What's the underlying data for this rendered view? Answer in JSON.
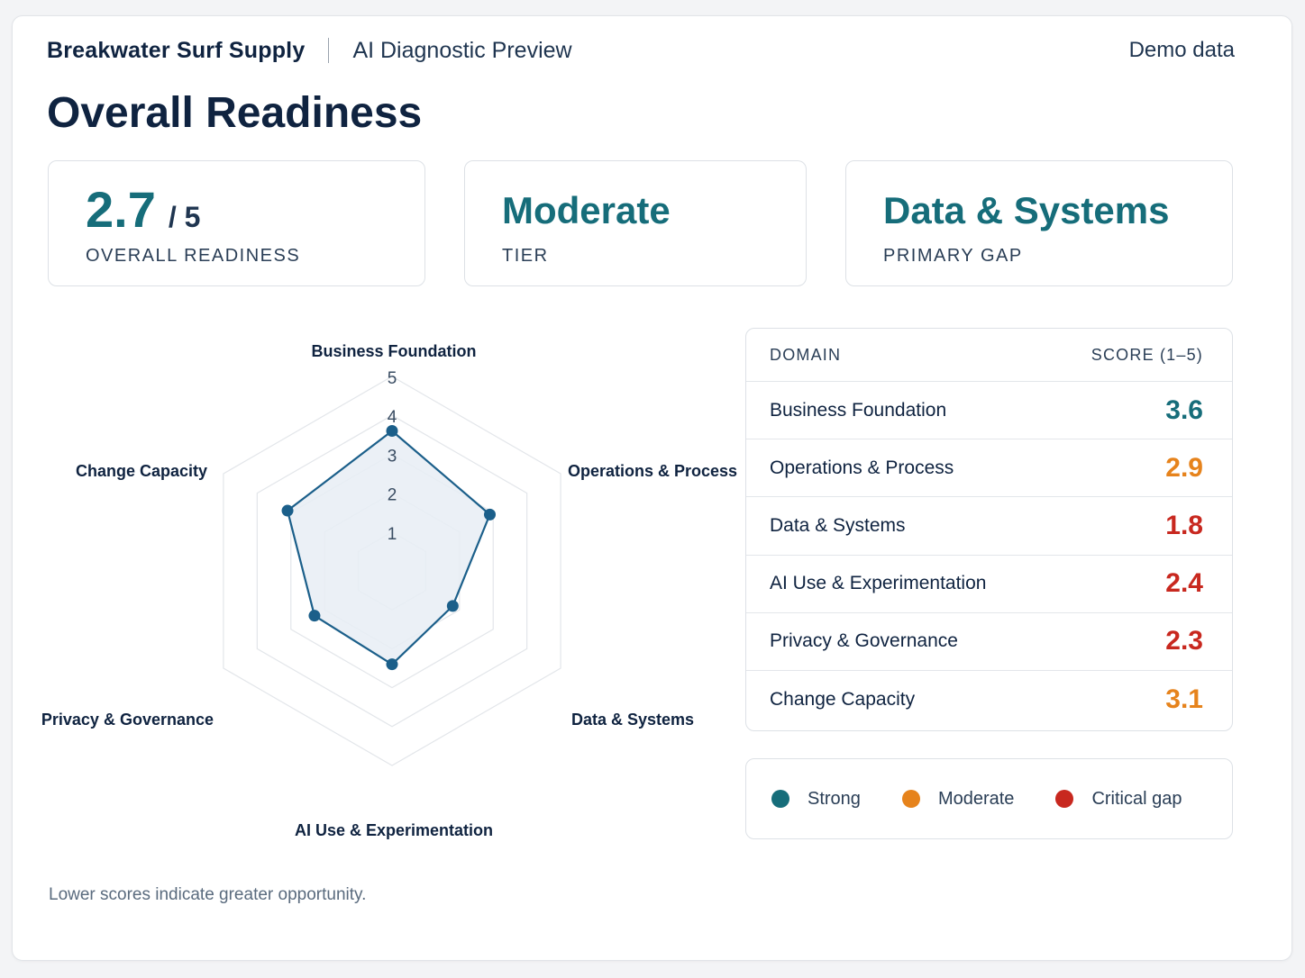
{
  "header": {
    "brand": "Breakwater Surf Supply",
    "subtitle": "AI Diagnostic Preview",
    "tag": "Demo data"
  },
  "page_title": "Overall Readiness",
  "kpis": {
    "readiness": {
      "value": "2.7",
      "denominator": "/ 5",
      "label": "OVERALL READINESS"
    },
    "tier": {
      "value": "Moderate",
      "label": "TIER"
    },
    "gap": {
      "value": "Data & Systems",
      "label": "PRIMARY GAP"
    }
  },
  "chart_data": {
    "type": "radar",
    "axes": [
      "Business Foundation",
      "Operations & Process",
      "Data & Systems",
      "AI Use & Experimentation",
      "Privacy & Governance",
      "Change Capacity"
    ],
    "values": [
      3.6,
      2.9,
      1.8,
      2.4,
      2.3,
      3.1
    ],
    "range": [
      0,
      5
    ],
    "rings": [
      1,
      2,
      3,
      4,
      5
    ],
    "tick_labels": [
      "1",
      "2",
      "3",
      "4",
      "5"
    ],
    "series_color": "#1b5f8a",
    "fill_color": "#e8edf5"
  },
  "table": {
    "col_domain": "DOMAIN",
    "col_score": "SCORE (1–5)",
    "rows": [
      {
        "domain": "Business Foundation",
        "score": "3.6",
        "color": "#166d7a"
      },
      {
        "domain": "Operations & Process",
        "score": "2.9",
        "color": "#e6831c"
      },
      {
        "domain": "Data & Systems",
        "score": "1.8",
        "color": "#c8281f"
      },
      {
        "domain": "AI Use & Experimentation",
        "score": "2.4",
        "color": "#c8281f"
      },
      {
        "domain": "Privacy & Governance",
        "score": "2.3",
        "color": "#c8281f"
      },
      {
        "domain": "Change Capacity",
        "score": "3.1",
        "color": "#e6831c"
      }
    ]
  },
  "legend": [
    {
      "label": "Strong",
      "color": "#166d7a"
    },
    {
      "label": "Moderate",
      "color": "#e6831c"
    },
    {
      "label": "Critical gap",
      "color": "#c8281f"
    }
  ],
  "footnote": "Lower scores indicate greater opportunity."
}
